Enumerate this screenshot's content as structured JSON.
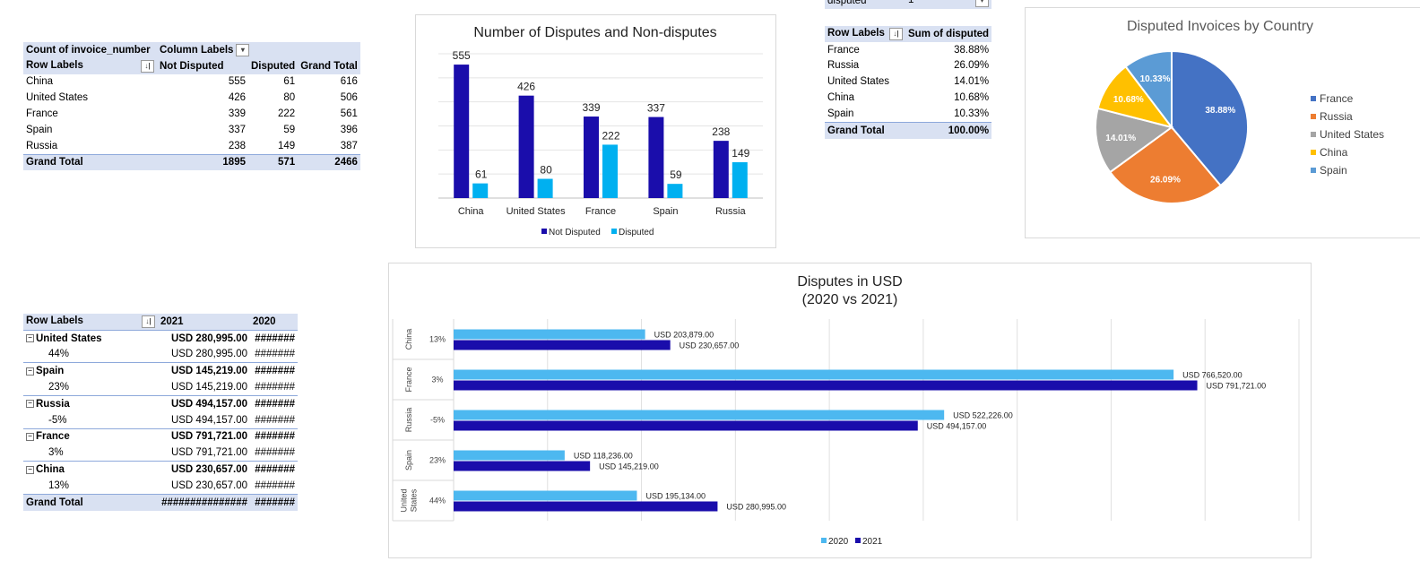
{
  "pivot1": {
    "corner": "Count of invoice_number",
    "col_labels": "Column Labels",
    "row_labels": "Row Labels",
    "headers": [
      "Not Disputed",
      "Disputed",
      "Grand Total"
    ],
    "rows": [
      {
        "label": "China",
        "values": [
          "555",
          "61",
          "616"
        ]
      },
      {
        "label": "United States",
        "values": [
          "426",
          "80",
          "506"
        ]
      },
      {
        "label": "France",
        "values": [
          "339",
          "222",
          "561"
        ]
      },
      {
        "label": "Spain",
        "values": [
          "337",
          "59",
          "396"
        ]
      },
      {
        "label": "Russia",
        "values": [
          "238",
          "149",
          "387"
        ]
      }
    ],
    "grand_total": {
      "label": "Grand Total",
      "values": [
        "1895",
        "571",
        "2466"
      ]
    }
  },
  "filter_row": {
    "label": "disputed",
    "value": "1"
  },
  "pivot2": {
    "row_labels": "Row Labels",
    "col_header": "Sum of disputed",
    "rows": [
      {
        "label": "France",
        "value": "38.88%"
      },
      {
        "label": "Russia",
        "value": "26.09%"
      },
      {
        "label": "United States",
        "value": "14.01%"
      },
      {
        "label": "China",
        "value": "10.68%"
      },
      {
        "label": "Spain",
        "value": "10.33%"
      }
    ],
    "grand_total": {
      "label": "Grand Total",
      "value": "100.00%"
    }
  },
  "pivot3": {
    "row_labels": "Row Labels",
    "col_2021": "2021",
    "col_2020": "2020",
    "groups": [
      {
        "label": "United States",
        "v2021": "USD  280,995.00",
        "v2020": "#######",
        "sub_label": "44%",
        "sub_2021": "USD  280,995.00",
        "sub_2020": "#######"
      },
      {
        "label": "Spain",
        "v2021": "USD  145,219.00",
        "v2020": "#######",
        "sub_label": "23%",
        "sub_2021": "USD  145,219.00",
        "sub_2020": "#######"
      },
      {
        "label": "Russia",
        "v2021": "USD  494,157.00",
        "v2020": "#######",
        "sub_label": "-5%",
        "sub_2021": "USD  494,157.00",
        "sub_2020": "#######"
      },
      {
        "label": "France",
        "v2021": "USD  791,721.00",
        "v2020": "#######",
        "sub_label": "3%",
        "sub_2021": "USD  791,721.00",
        "sub_2020": "#######"
      },
      {
        "label": "China",
        "v2021": "USD  230,657.00",
        "v2020": "#######",
        "sub_label": "13%",
        "sub_2021": "USD  230,657.00",
        "sub_2020": "#######"
      }
    ],
    "grand_total": {
      "label": "Grand Total",
      "v2021": "###############",
      "v2020": "#######"
    }
  },
  "chart_data": [
    {
      "type": "bar",
      "title": "Number of Disputes and Non-disputes",
      "categories": [
        "China",
        "United States",
        "France",
        "Spain",
        "Russia"
      ],
      "series": [
        {
          "name": "Not Disputed",
          "values": [
            555,
            426,
            339,
            337,
            238
          ],
          "color": "#1a0dab"
        },
        {
          "name": "Disputed",
          "values": [
            61,
            80,
            222,
            59,
            149
          ],
          "color": "#00b0f0"
        }
      ],
      "ylim": [
        0,
        600
      ],
      "grid": true,
      "legend": "bottom"
    },
    {
      "type": "pie",
      "title": "Disputed Invoices by Country",
      "labels": [
        "France",
        "Russia",
        "United States",
        "China",
        "Spain"
      ],
      "values": [
        38.88,
        26.09,
        14.01,
        10.68,
        10.33
      ],
      "value_labels": [
        "38.88%",
        "26.09%",
        "14.01%",
        "10.68%",
        "10.33%"
      ],
      "colors": [
        "#4472c4",
        "#ed7d31",
        "#a5a5a5",
        "#ffc000",
        "#5b9bd5"
      ],
      "legend": "right"
    },
    {
      "type": "bar",
      "orientation": "horizontal",
      "title": [
        "Disputes in USD",
        "(2020 vs 2021)"
      ],
      "categories": [
        "China",
        "France",
        "Russia",
        "Spain",
        "United States"
      ],
      "category_display": [
        [
          "China"
        ],
        [
          "France"
        ],
        [
          "Russia"
        ],
        [
          "Spain"
        ],
        [
          "United",
          "States"
        ]
      ],
      "subcategories": [
        "13%",
        "3%",
        "-5%",
        "23%",
        "44%"
      ],
      "series": [
        {
          "name": "2020",
          "values": [
            203879,
            766520,
            522226,
            118236,
            195134
          ],
          "labels": [
            "USD 203,879.00",
            "USD 766,520.00",
            "USD 522,226.00",
            "USD 118,236.00",
            "USD 195,134.00"
          ],
          "color": "#4db8f0"
        },
        {
          "name": "2021",
          "values": [
            230657,
            791721,
            494157,
            145219,
            280995
          ],
          "labels": [
            "USD 230,657.00",
            "USD 791,721.00",
            "USD 494,157.00",
            "USD 145,219.00",
            "USD 280,995.00"
          ],
          "color": "#1a0dab"
        }
      ],
      "xlim": [
        0,
        900000
      ],
      "grid": true,
      "legend": "bottom"
    }
  ]
}
